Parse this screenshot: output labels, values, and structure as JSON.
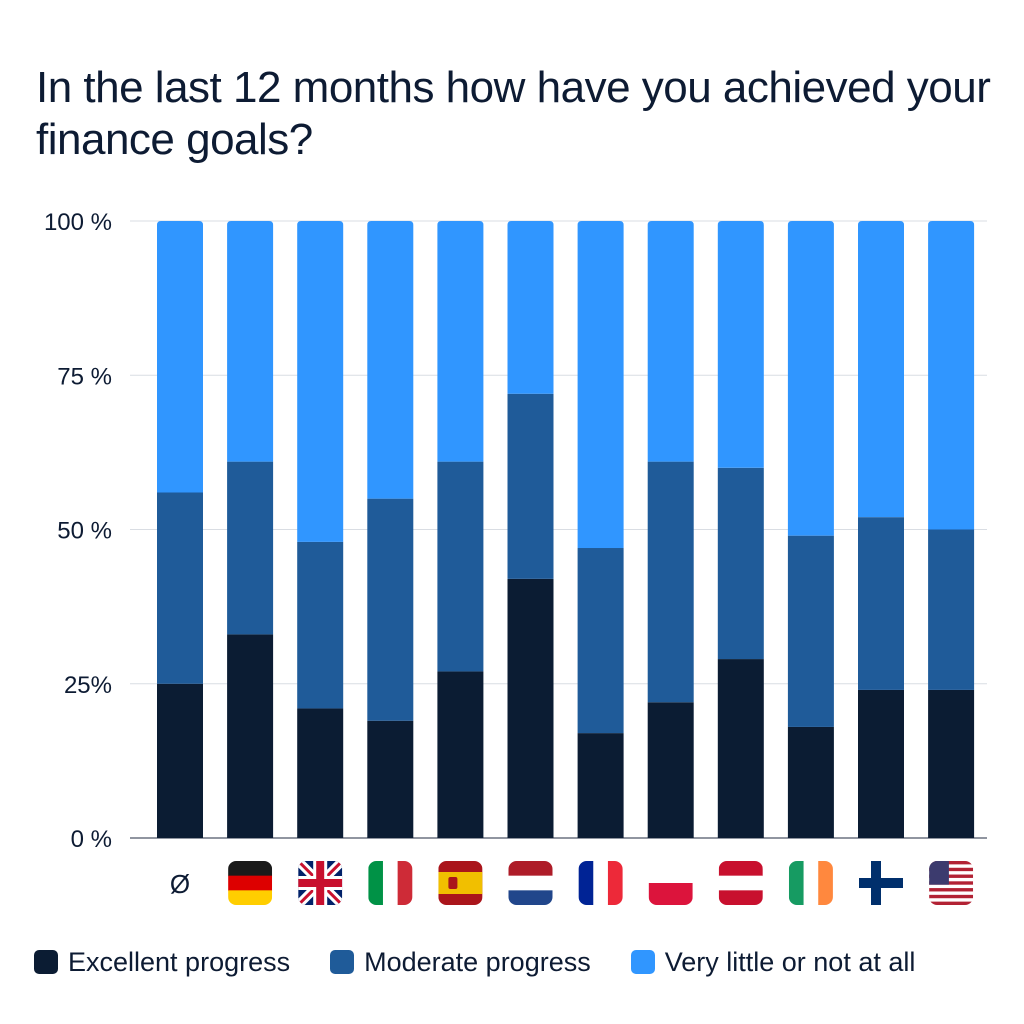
{
  "title": "In the last 12 months how have you achieved your finance goals?",
  "colors": {
    "excellent": "#0b1c33",
    "moderate": "#1f5b99",
    "little": "#3096ff",
    "grid": "#d9dde3",
    "axis": "#6b7280"
  },
  "legend": [
    {
      "label": "Excellent progress",
      "color": "#0b1c33"
    },
    {
      "label": "Moderate progress",
      "color": "#1f5b99"
    },
    {
      "label": "Very little or not at all",
      "color": "#3096ff"
    }
  ],
  "chart_data": {
    "type": "bar",
    "stacked": true,
    "title": "In the last 12 months how have you achieved your finance goals?",
    "categories": [
      "Ø",
      "Germany",
      "United Kingdom",
      "Italy",
      "Spain",
      "Netherlands",
      "France",
      "Poland",
      "Austria",
      "Ireland",
      "Finland",
      "United States"
    ],
    "category_icons": [
      "text",
      "flag-de",
      "flag-gb",
      "flag-it",
      "flag-es",
      "flag-nl",
      "flag-fr",
      "flag-pl",
      "flag-at",
      "flag-ie",
      "flag-fi",
      "flag-us"
    ],
    "y_ticks": [
      "0 %",
      "25%",
      "50 %",
      "75 %",
      "100 %"
    ],
    "ylim": [
      0,
      100
    ],
    "grid": true,
    "legend_position": "bottom",
    "series": [
      {
        "name": "Excellent progress",
        "values": [
          25,
          33,
          21,
          19,
          27,
          42,
          17,
          22,
          29,
          18,
          24,
          24
        ]
      },
      {
        "name": "Moderate progress",
        "values": [
          31,
          28,
          27,
          36,
          34,
          30,
          30,
          39,
          31,
          31,
          28,
          26
        ]
      },
      {
        "name": "Very little or not at all",
        "values": [
          44,
          39,
          52,
          45,
          39,
          28,
          53,
          39,
          40,
          51,
          48,
          50
        ]
      }
    ]
  }
}
